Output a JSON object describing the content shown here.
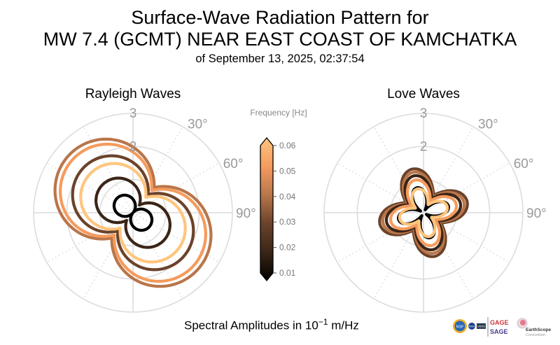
{
  "title": {
    "line1": "Surface-Wave Radiation Pattern for",
    "line2": "MW 7.4 (GCMT) NEAR EAST COAST OF KAMCHATKA",
    "line3": "of September 13, 2025, 02:37:54"
  },
  "footer": {
    "prefix": "Spectral Amplitudes in ",
    "base": "10",
    "exponent": "−1",
    "unit": " m/Hz"
  },
  "logos": {
    "nsf": "NSF",
    "nasa": "NASA",
    "usgs": "USGS",
    "gage": "GAGE",
    "sage": "SAGE",
    "earthscope": "EarthScope",
    "consortium": "Consortium"
  },
  "chart_data": [
    {
      "type": "polar-line",
      "title": "Rayleigh Waves",
      "r_ticks": [
        "2",
        "3"
      ],
      "r_tick_values": [
        2,
        3
      ],
      "rlim": [
        0,
        3
      ],
      "angle_labels": [
        "30°",
        "60°",
        "90°"
      ],
      "angle_label_values": [
        30,
        60,
        90
      ],
      "pattern": "two-lobed",
      "lobe_axis_azimuth_deg": 130,
      "series": [
        {
          "frequency": 0.04,
          "color": "#b9764a",
          "min_amplitude": 1.0,
          "max_amplitude": 2.6
        },
        {
          "frequency": 0.05,
          "color": "#f59b5d",
          "min_amplitude": 0.88,
          "max_amplitude": 2.43
        },
        {
          "frequency": 0.03,
          "color": "#6b432a",
          "min_amplitude": 0.72,
          "max_amplitude": 2.02
        },
        {
          "frequency": 0.06,
          "color": "#ffc57d",
          "min_amplitude": 0.6,
          "max_amplitude": 1.75
        },
        {
          "frequency": 0.02,
          "color": "#3b2517",
          "min_amplitude": 0.3,
          "max_amplitude": 1.25
        },
        {
          "frequency": 0.01,
          "color": "#000000",
          "min_amplitude": 0.02,
          "max_amplitude": 0.65
        }
      ]
    },
    {
      "type": "polar-line",
      "title": "Love Waves",
      "r_ticks": [
        "2",
        "3"
      ],
      "r_tick_values": [
        2,
        3
      ],
      "rlim": [
        0,
        3
      ],
      "angle_labels": [
        "30°",
        "60°",
        "90°"
      ],
      "angle_label_values": [
        30,
        60,
        90
      ],
      "pattern": "four-lobed",
      "lobe_azimuths_deg": [
        345,
        75,
        165,
        255
      ],
      "series": [
        {
          "frequency": 0.03,
          "color": "#6b432a",
          "min_amplitude": 0.62,
          "max_amplitude": 1.36
        },
        {
          "frequency": 0.04,
          "color": "#b9764a",
          "min_amplitude": 0.55,
          "max_amplitude": 1.26
        },
        {
          "frequency": 0.02,
          "color": "#3b2517",
          "min_amplitude": 0.5,
          "max_amplitude": 1.15
        },
        {
          "frequency": 0.05,
          "color": "#f59b5d",
          "min_amplitude": 0.42,
          "max_amplitude": 1.02
        },
        {
          "frequency": 0.01,
          "color": "#000000",
          "min_amplitude": 0.1,
          "max_amplitude": 0.78
        },
        {
          "frequency": 0.06,
          "color": "#ffc57d",
          "min_amplitude": 0.28,
          "max_amplitude": 0.74
        }
      ]
    }
  ],
  "colorbar": {
    "label": "Frequency [Hz]",
    "ticks": [
      "0.06",
      "0.05",
      "0.04",
      "0.03",
      "0.02",
      "0.01"
    ],
    "tick_values": [
      0.06,
      0.05,
      0.04,
      0.03,
      0.02,
      0.01
    ],
    "range": [
      0.01,
      0.06
    ],
    "colormap": "copper",
    "stops": [
      "#000000",
      "#3b2517",
      "#6b432a",
      "#b9764a",
      "#f59b5d",
      "#ffc57d"
    ]
  }
}
